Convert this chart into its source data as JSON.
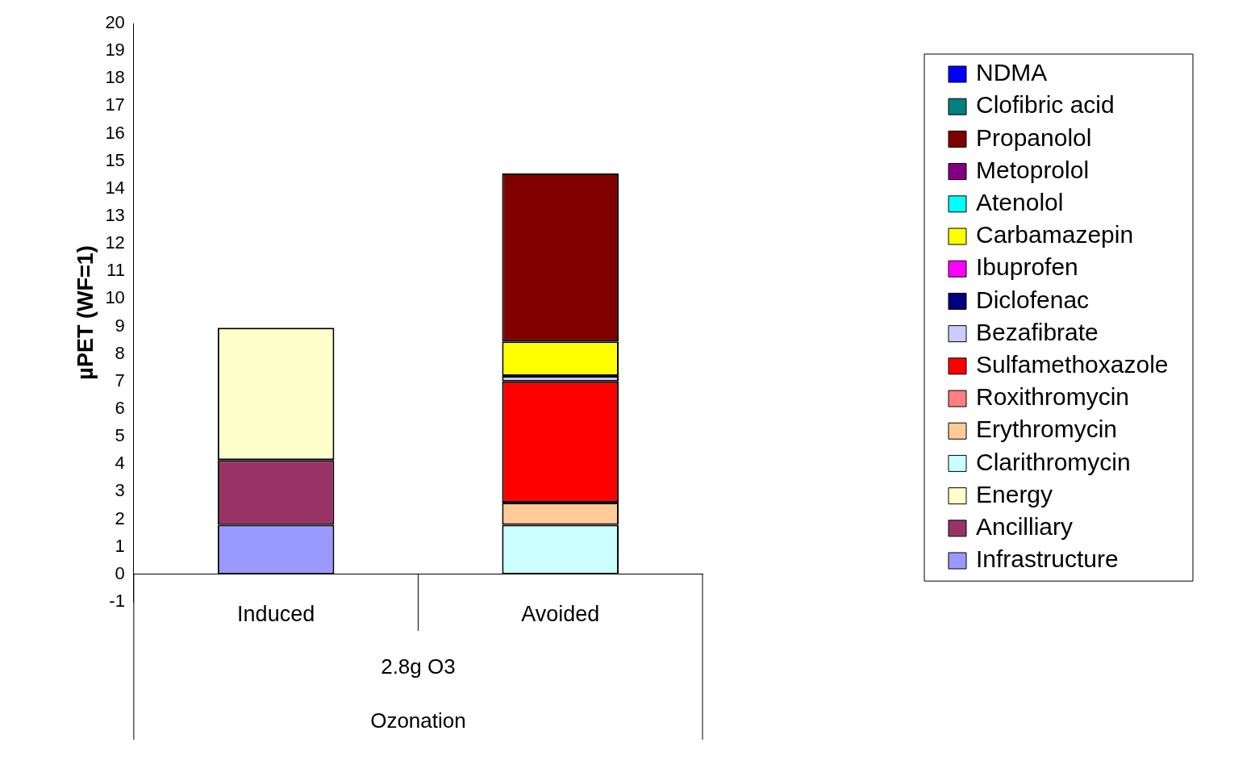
{
  "chart_data": {
    "type": "bar",
    "stacked": true,
    "ylabel": "µPET (WF=1)",
    "categories": [
      "Induced",
      "Avoided"
    ],
    "annotations": [
      "2.8g O3",
      "Ozonation"
    ],
    "ylim": [
      -1,
      20
    ],
    "yticks": [
      -1,
      0,
      1,
      2,
      3,
      4,
      5,
      6,
      7,
      8,
      9,
      10,
      11,
      12,
      13,
      14,
      15,
      16,
      17,
      18,
      19,
      20
    ],
    "grid": false,
    "legend": "right",
    "series": [
      {
        "name": "Infrastructure",
        "color": "#9999ff",
        "values": [
          1.8,
          null
        ]
      },
      {
        "name": "Ancilliary",
        "color": "#993366",
        "values": [
          2.35,
          null
        ]
      },
      {
        "name": "Energy",
        "color": "#ffffcc",
        "values": [
          4.8,
          null
        ]
      },
      {
        "name": "Clarithromycin",
        "color": "#ccffff",
        "values": [
          null,
          1.8
        ]
      },
      {
        "name": "Erythromycin",
        "color": "#ffcc99",
        "values": [
          null,
          0.8
        ]
      },
      {
        "name": "Roxithromycin",
        "color": "#ff8080",
        "values": [
          null,
          null
        ]
      },
      {
        "name": "Sulfamethoxazole",
        "color": "#ff0000",
        "values": [
          null,
          4.4
        ]
      },
      {
        "name": "Bezafibrate",
        "color": "#ccccff",
        "values": [
          null,
          0.2
        ]
      },
      {
        "name": "Diclofenac",
        "color": "#000080",
        "values": [
          null,
          null
        ]
      },
      {
        "name": "Ibuprofen",
        "color": "#ff00ff",
        "values": [
          null,
          null
        ]
      },
      {
        "name": "Carbamazepin",
        "color": "#ffff00",
        "values": [
          null,
          1.25
        ]
      },
      {
        "name": "Atenolol",
        "color": "#00ffff",
        "values": [
          null,
          null
        ]
      },
      {
        "name": "Metoprolol",
        "color": "#800080",
        "values": [
          null,
          null
        ]
      },
      {
        "name": "Propanolol",
        "color": "#800000",
        "values": [
          null,
          6.1
        ]
      },
      {
        "name": "Clofibric acid",
        "color": "#008080",
        "values": [
          null,
          null
        ]
      },
      {
        "name": "NDMA",
        "color": "#0000ff",
        "values": [
          null,
          null
        ]
      }
    ]
  }
}
